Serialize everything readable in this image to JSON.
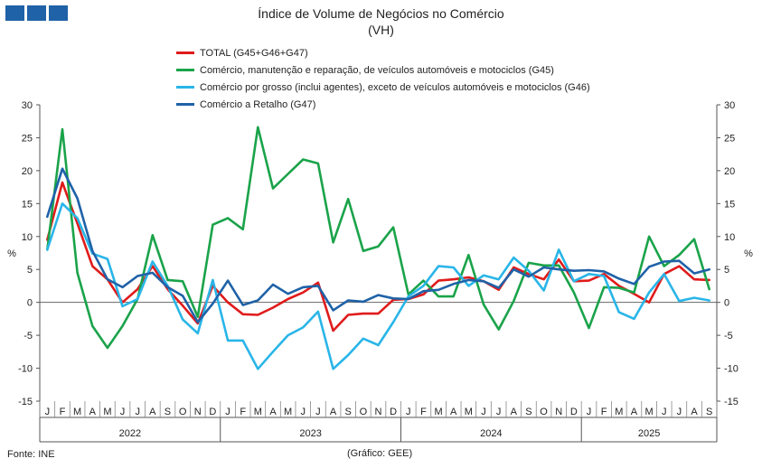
{
  "header": {
    "title": "Índice de Volume de Negócios no Comércio",
    "subtitle": "(VH)"
  },
  "footer": {
    "source": "Fonte: INE",
    "credit": "(Gráfico: GEE)"
  },
  "colors": {
    "total": "#e01b1b",
    "g45": "#1aa34a",
    "g46": "#29b5e8",
    "g47": "#1f62a8",
    "logo": "#1f62a8"
  },
  "chart_data": {
    "type": "line",
    "title": "Índice de Volume de Negócios no Comércio",
    "subtitle": "(VH)",
    "ylabel_left": "%",
    "ylabel_right": "%",
    "ylim": [
      -15,
      30
    ],
    "yticks": [
      -15,
      -10,
      -5,
      0,
      5,
      10,
      15,
      20,
      25,
      30
    ],
    "grid": false,
    "legend_position": "top",
    "month_labels": [
      "J",
      "F",
      "M",
      "A",
      "M",
      "J",
      "J",
      "A",
      "S",
      "O",
      "N",
      "D",
      "J",
      "F",
      "M",
      "A",
      "M",
      "J",
      "J",
      "A",
      "S",
      "O",
      "N",
      "D",
      "J",
      "F",
      "M",
      "A",
      "M",
      "J",
      "J",
      "A",
      "S",
      "O",
      "N",
      "D",
      "J",
      "F",
      "M",
      "A",
      "M",
      "J",
      "J",
      "A",
      "S"
    ],
    "years": [
      "2022",
      "2023",
      "2024",
      "2025"
    ],
    "series": [
      {
        "name": "TOTAL (G45+G46+G47)",
        "color": "#e01b1b",
        "values": [
          9.5,
          18.2,
          12.0,
          5.5,
          3.5,
          0.0,
          2.0,
          5.5,
          2.0,
          -0.5,
          -3.2,
          2.5,
          0.0,
          -1.8,
          -1.9,
          -0.8,
          0.5,
          1.5,
          3.0,
          -4.3,
          -1.9,
          -1.7,
          -1.7,
          0.4,
          0.5,
          1.2,
          3.3,
          3.5,
          3.8,
          3.2,
          1.9,
          5.3,
          4.3,
          3.5,
          6.5,
          3.2,
          3.3,
          4.3,
          2.5,
          1.3,
          0.0,
          4.3,
          5.5,
          3.5,
          3.4
        ]
      },
      {
        "name": "Comércio, manutenção e reparação, de veículos automóveis e motociclos (G45)",
        "color": "#1aa34a",
        "values": [
          8.0,
          26.3,
          4.5,
          -3.6,
          -6.9,
          -3.6,
          0.5,
          10.2,
          3.4,
          3.2,
          -2.2,
          11.8,
          12.8,
          11.1,
          26.6,
          17.3,
          19.5,
          21.7,
          21.1,
          9.1,
          15.7,
          7.8,
          8.5,
          11.4,
          1.2,
          3.3,
          0.9,
          0.9,
          7.2,
          -0.3,
          -4.1,
          0.2,
          6.0,
          5.6,
          5.6,
          1.5,
          -3.9,
          2.3,
          2.2,
          1.5,
          10.0,
          5.5,
          7.2,
          9.6,
          2.0
        ]
      },
      {
        "name": "Comércio por grosso (inclui agentes), exceto de veículos automóveis e motociclos (G46)",
        "color": "#29b5e8",
        "values": [
          8.0,
          15.0,
          12.8,
          7.4,
          6.6,
          -0.6,
          0.5,
          6.2,
          2.5,
          -2.6,
          -4.7,
          3.4,
          -5.8,
          -5.8,
          -10.1,
          -7.5,
          -5.0,
          -3.8,
          -1.4,
          -10.1,
          -8.0,
          -5.5,
          -6.5,
          -3.0,
          0.9,
          2.5,
          5.5,
          5.3,
          2.5,
          4.1,
          3.5,
          6.8,
          4.8,
          1.8,
          8.0,
          3.2,
          4.3,
          4.0,
          -1.5,
          -2.5,
          1.5,
          4.3,
          0.2,
          0.7,
          0.3
        ]
      },
      {
        "name": "Comércio a Retalho (G47)",
        "color": "#1f62a8",
        "values": [
          13.0,
          20.3,
          15.8,
          7.8,
          3.5,
          2.3,
          4.0,
          4.5,
          2.3,
          1.0,
          -3.0,
          -0.2,
          3.3,
          -0.4,
          0.3,
          2.7,
          1.3,
          2.3,
          2.5,
          -1.2,
          0.3,
          0.1,
          1.1,
          0.6,
          0.5,
          1.7,
          1.9,
          2.8,
          3.4,
          3.2,
          2.2,
          5.0,
          3.9,
          5.3,
          5.0,
          4.8,
          4.9,
          4.7,
          3.6,
          2.8,
          5.4,
          6.2,
          6.3,
          4.4,
          5.0
        ]
      }
    ]
  }
}
